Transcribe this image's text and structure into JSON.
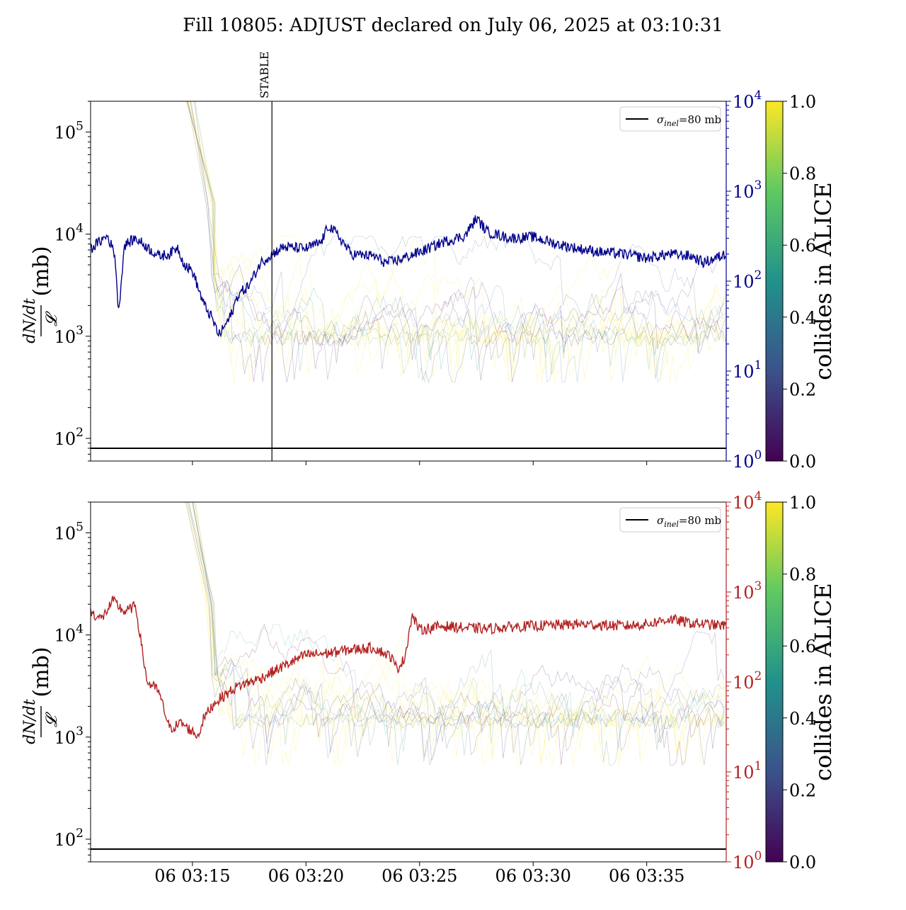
{
  "title": "Fill 10805: ADJUST declared on July 06, 2025 at 03:10:31",
  "colormap": [
    "#440154",
    "#3b528b",
    "#21918c",
    "#5ec962",
    "#fde725"
  ],
  "chart_data": [
    {
      "type": "line",
      "panel": "top",
      "x_axis": {
        "type": "time",
        "range": [
          "2025-07-06 03:10:31",
          "2025-07-06 03:38:30"
        ],
        "tick_labels": []
      },
      "y_left": {
        "label_lines": [
          "dN/dt",
          "𝓛",
          "(mb)"
        ],
        "scale": "log",
        "range": [
          60,
          200000
        ],
        "ticks": [
          {
            "base": "10",
            "exp": "2",
            "value": 100
          },
          {
            "base": "10",
            "exp": "3",
            "value": 1000
          },
          {
            "base": "10",
            "exp": "4",
            "value": 10000
          },
          {
            "base": "10",
            "exp": "5",
            "value": 100000
          }
        ]
      },
      "y_right": {
        "scale": "log",
        "range": [
          1,
          10000
        ],
        "color": "#00008b",
        "ticks": [
          {
            "base": "10",
            "exp": "0",
            "value": 1
          },
          {
            "base": "10",
            "exp": "1",
            "value": 10
          },
          {
            "base": "10",
            "exp": "2",
            "value": 100
          },
          {
            "base": "10",
            "exp": "3",
            "value": 1000
          },
          {
            "base": "10",
            "exp": "4",
            "value": 10000
          }
        ]
      },
      "reference_line": {
        "value": 80,
        "legend_symbol": "σ",
        "legend_sub": "inel",
        "legend_rest": "=80 mb",
        "color": "#000000"
      },
      "annotation": {
        "label": "STABLE",
        "time": "2025-07-06 03:18:30"
      },
      "main_series": {
        "axis": "right",
        "color": "#00008b",
        "points": [
          [
            "03:10:31",
            230
          ],
          [
            "03:11:15",
            320
          ],
          [
            "03:11:35",
            200
          ],
          [
            "03:11:45",
            45
          ],
          [
            "03:12:00",
            250
          ],
          [
            "03:12:30",
            300
          ],
          [
            "03:13:00",
            240
          ],
          [
            "03:13:30",
            190
          ],
          [
            "03:14:00",
            200
          ],
          [
            "03:14:20",
            240
          ],
          [
            "03:14:40",
            150
          ],
          [
            "03:15:00",
            130
          ],
          [
            "03:15:30",
            55
          ],
          [
            "03:15:50",
            40
          ],
          [
            "03:16:10",
            25
          ],
          [
            "03:16:40",
            40
          ],
          [
            "03:17:00",
            70
          ],
          [
            "03:17:30",
            90
          ],
          [
            "03:18:00",
            160
          ],
          [
            "03:18:30",
            200
          ],
          [
            "03:19:00",
            240
          ],
          [
            "03:20:00",
            230
          ],
          [
            "03:20:40",
            270
          ],
          [
            "03:21:00",
            420
          ],
          [
            "03:21:30",
            300
          ],
          [
            "03:22:00",
            200
          ],
          [
            "03:23:00",
            190
          ],
          [
            "03:23:30",
            160
          ],
          [
            "03:24:00",
            170
          ],
          [
            "03:25:00",
            210
          ],
          [
            "03:26:00",
            270
          ],
          [
            "03:27:00",
            320
          ],
          [
            "03:27:30",
            500
          ],
          [
            "03:28:00",
            350
          ],
          [
            "03:29:00",
            300
          ],
          [
            "03:30:00",
            310
          ],
          [
            "03:31:00",
            260
          ],
          [
            "03:32:00",
            230
          ],
          [
            "03:33:00",
            210
          ],
          [
            "03:34:00",
            200
          ],
          [
            "03:35:00",
            180
          ],
          [
            "03:36:00",
            200
          ],
          [
            "03:37:00",
            190
          ],
          [
            "03:37:30",
            160
          ],
          [
            "03:38:30",
            200
          ]
        ]
      },
      "bunch_traces": {
        "count": 16,
        "axis": "left",
        "typical_range": [
          1000,
          6000
        ],
        "color_value_range": [
          0,
          1
        ]
      },
      "colorbar": {
        "label": "collides in ALICE",
        "range": [
          0,
          1
        ],
        "ticks": [
          "0.0",
          "0.2",
          "0.4",
          "0.6",
          "0.8",
          "1.0"
        ]
      }
    },
    {
      "type": "line",
      "panel": "bottom",
      "x_axis": {
        "type": "time",
        "range": [
          "2025-07-06 03:10:31",
          "2025-07-06 03:38:30"
        ],
        "tick_labels": [
          {
            "label": "06 03:15",
            "time": "03:15:00"
          },
          {
            "label": "06 03:20",
            "time": "03:20:00"
          },
          {
            "label": "06 03:25",
            "time": "03:25:00"
          },
          {
            "label": "06 03:30",
            "time": "03:30:00"
          },
          {
            "label": "06 03:35",
            "time": "03:35:00"
          }
        ]
      },
      "y_left": {
        "label_lines": [
          "dN/dt",
          "𝓛",
          "(mb)"
        ],
        "scale": "log",
        "range": [
          60,
          200000
        ],
        "ticks": [
          {
            "base": "10",
            "exp": "2",
            "value": 100
          },
          {
            "base": "10",
            "exp": "3",
            "value": 1000
          },
          {
            "base": "10",
            "exp": "4",
            "value": 10000
          },
          {
            "base": "10",
            "exp": "5",
            "value": 100000
          }
        ]
      },
      "y_right": {
        "scale": "log",
        "range": [
          1,
          10000
        ],
        "color": "#b22222",
        "ticks": [
          {
            "base": "10",
            "exp": "0",
            "value": 1
          },
          {
            "base": "10",
            "exp": "1",
            "value": 10
          },
          {
            "base": "10",
            "exp": "2",
            "value": 100
          },
          {
            "base": "10",
            "exp": "3",
            "value": 1000
          },
          {
            "base": "10",
            "exp": "4",
            "value": 10000
          }
        ]
      },
      "reference_line": {
        "value": 80,
        "legend_symbol": "σ",
        "legend_sub": "inel",
        "legend_rest": "=80 mb",
        "color": "#000000"
      },
      "main_series": {
        "axis": "right",
        "color": "#b22222",
        "points": [
          [
            "03:10:31",
            600
          ],
          [
            "03:11:00",
            500
          ],
          [
            "03:11:30",
            800
          ],
          [
            "03:12:00",
            600
          ],
          [
            "03:12:30",
            700
          ],
          [
            "03:13:00",
            100
          ],
          [
            "03:13:30",
            80
          ],
          [
            "03:14:00",
            30
          ],
          [
            "03:14:30",
            35
          ],
          [
            "03:15:00",
            28
          ],
          [
            "03:15:15",
            25
          ],
          [
            "03:15:30",
            40
          ],
          [
            "03:16:00",
            60
          ],
          [
            "03:17:00",
            90
          ],
          [
            "03:18:00",
            110
          ],
          [
            "03:19:00",
            150
          ],
          [
            "03:20:00",
            200
          ],
          [
            "03:21:00",
            210
          ],
          [
            "03:22:00",
            230
          ],
          [
            "03:23:00",
            240
          ],
          [
            "03:23:45",
            190
          ],
          [
            "03:24:00",
            140
          ],
          [
            "03:24:20",
            180
          ],
          [
            "03:24:40",
            550
          ],
          [
            "03:25:00",
            380
          ],
          [
            "03:26:00",
            420
          ],
          [
            "03:27:00",
            400
          ],
          [
            "03:28:00",
            390
          ],
          [
            "03:29:00",
            410
          ],
          [
            "03:30:00",
            420
          ],
          [
            "03:31:00",
            430
          ],
          [
            "03:32:00",
            440
          ],
          [
            "03:33:00",
            430
          ],
          [
            "03:34:00",
            420
          ],
          [
            "03:35:00",
            440
          ],
          [
            "03:36:00",
            500
          ],
          [
            "03:37:00",
            450
          ],
          [
            "03:38:30",
            420
          ]
        ]
      },
      "bunch_traces": {
        "count": 16,
        "axis": "left",
        "typical_range": [
          1500,
          8000
        ],
        "color_value_range": [
          0,
          1
        ]
      },
      "colorbar": {
        "label": "collides in ALICE",
        "range": [
          0,
          1
        ],
        "ticks": [
          "0.0",
          "0.2",
          "0.4",
          "0.6",
          "0.8",
          "1.0"
        ]
      }
    }
  ]
}
